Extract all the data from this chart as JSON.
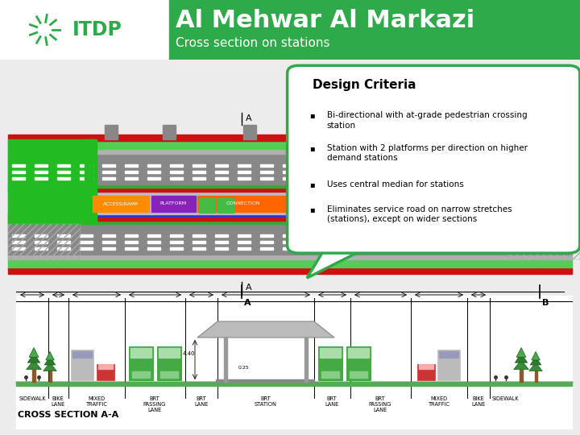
{
  "title": "Al Mehwar Al Markazi",
  "subtitle": "Cross section on stations",
  "header_bg": "#2eaa4a",
  "header_text_color": "#ffffff",
  "logo_color": "#2eaa4a",
  "page_bg": "#ffffff",
  "content_bg": "#f0f0f0",
  "design_criteria_title": "Design Criteria",
  "design_criteria_bullets": [
    "Bi-directional with at-grade pedestrian crossing\nstation",
    "Station with 2 platforms per direction on higher\ndemand stations",
    "Uses central median for stations",
    "Eliminates service road on narrow stretches\n(stations), except on wider sections"
  ],
  "callout_bg": "#ffffff",
  "callout_border": "#2eaa4a",
  "cross_section_title": "CROSS SECTION A-A"
}
